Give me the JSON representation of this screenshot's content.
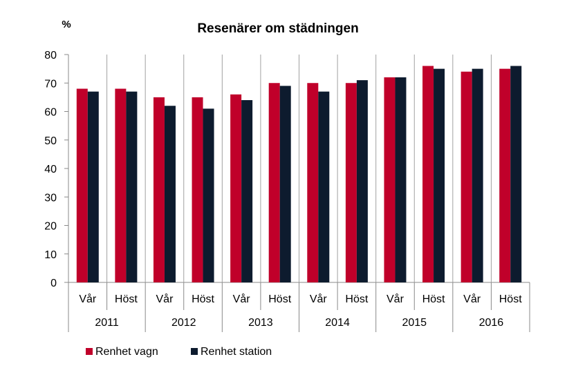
{
  "chart_data": {
    "type": "bar",
    "title": "Resenärer om städningen",
    "ylabel": "%",
    "xlabel": "",
    "ylim": [
      0,
      80
    ],
    "yticks": [
      0,
      10,
      20,
      30,
      40,
      50,
      60,
      70,
      80
    ],
    "grid": false,
    "legend_position": "bottom-left",
    "groups": [
      {
        "year": "2011",
        "categories": [
          "Vår",
          "Höst"
        ]
      },
      {
        "year": "2012",
        "categories": [
          "Vår",
          "Höst"
        ]
      },
      {
        "year": "2013",
        "categories": [
          "Vår",
          "Höst"
        ]
      },
      {
        "year": "2014",
        "categories": [
          "Vår",
          "Höst"
        ]
      },
      {
        "year": "2015",
        "categories": [
          "Vår",
          "Höst"
        ]
      },
      {
        "year": "2016",
        "categories": [
          "Vår",
          "Höst"
        ]
      }
    ],
    "series": [
      {
        "name": "Renhet vagn",
        "color": "#c0002a",
        "values": [
          68,
          68,
          65,
          65,
          66,
          70,
          70,
          70,
          72,
          76,
          74,
          75
        ]
      },
      {
        "name": "Renhet station",
        "color": "#0d1b2e",
        "values": [
          67,
          67,
          62,
          61,
          64,
          69,
          67,
          71,
          72,
          75,
          75,
          76
        ]
      }
    ]
  }
}
